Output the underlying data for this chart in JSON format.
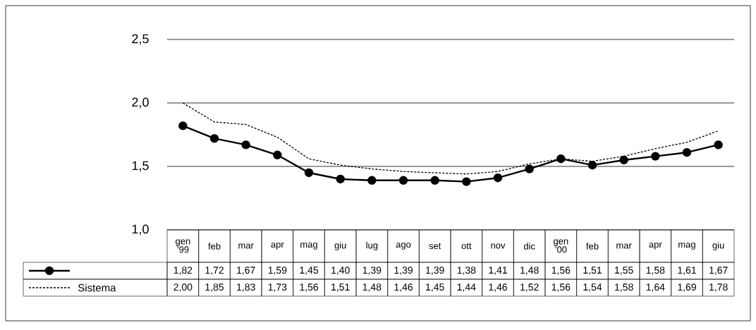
{
  "chart_data": {
    "type": "line",
    "categories": [
      "gen ’99",
      "feb",
      "mar",
      "apr",
      "mag",
      "giu",
      "lug",
      "ago",
      "set",
      "ott",
      "nov",
      "dic",
      "gen ’00",
      "feb",
      "mar",
      "apr",
      "mag",
      "giu"
    ],
    "series": [
      {
        "color": "#000000",
        "marker": "circle",
        "line_style": "solid",
        "values": [
          1.82,
          1.72,
          1.67,
          1.59,
          1.45,
          1.4,
          1.39,
          1.39,
          1.39,
          1.38,
          1.41,
          1.48,
          1.56,
          1.51,
          1.55,
          1.58,
          1.61,
          1.67
        ],
        "value_labels": [
          "1,82",
          "1,72",
          "1,67",
          "1,59",
          "1,45",
          "1,40",
          "1,39",
          "1,39",
          "1,39",
          "1,38",
          "1,41",
          "1,48",
          "1,56",
          "1,51",
          "1,55",
          "1,58",
          "1,61",
          "1,67"
        ]
      },
      {
        "name": "Sistema",
        "color": "#000000",
        "marker": "none",
        "line_style": "dashed",
        "values": [
          2.0,
          1.85,
          1.83,
          1.73,
          1.56,
          1.51,
          1.48,
          1.46,
          1.45,
          1.44,
          1.46,
          1.52,
          1.56,
          1.54,
          1.58,
          1.64,
          1.69,
          1.78
        ],
        "value_labels": [
          "2,00",
          "1,85",
          "1,83",
          "1,73",
          "1,56",
          "1,51",
          "1,48",
          "1,46",
          "1,45",
          "1,44",
          "1,46",
          "1,52",
          "1,56",
          "1,54",
          "1,58",
          "1,64",
          "1,69",
          "1,78"
        ]
      }
    ],
    "ylim": [
      1.0,
      2.5
    ],
    "yticks": [
      {
        "value": 1.0,
        "label": "1,0"
      },
      {
        "value": 1.5,
        "label": "1,5"
      },
      {
        "value": 2.0,
        "label": "2,0"
      },
      {
        "value": 2.5,
        "label": "2,5"
      }
    ],
    "grid": "y",
    "legend": "bottom"
  }
}
